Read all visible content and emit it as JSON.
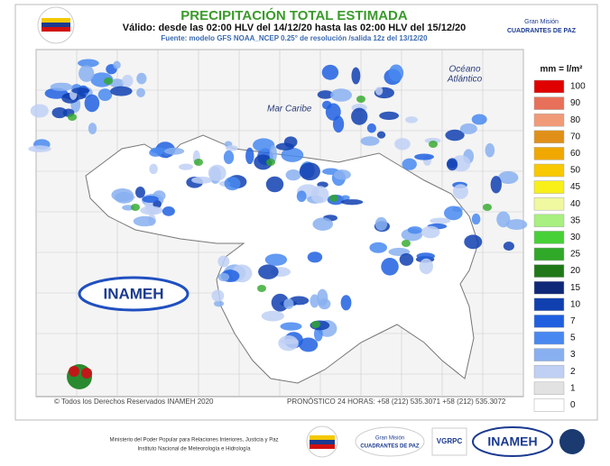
{
  "header": {
    "title": "PRECIPITACIÓN TOTAL ESTIMADA",
    "subtitle": "Válido: desde las 02:00 HLV del 14/12/20 hasta las 02:00 HLV del 15/12/20",
    "source": "Fuente: modelo GFS NOAA_NCEP 0.25° de resolución /salida 12z del 13/12/20"
  },
  "map": {
    "labels": [
      "Mar Caribe",
      "Océano",
      "Atlántico"
    ],
    "copyright": "© Todos los Derechos Reservados INAMEH 2020",
    "forecast": "PRONÓSTICO 24 HORAS: +58 (212) 535.3071 +58 (212) 535.3072",
    "logo": "INAMEH"
  },
  "legend": {
    "title": "mm = l/m²",
    "items": [
      {
        "label": "100",
        "color": "#e00000"
      },
      {
        "label": "90",
        "color": "#e8705a"
      },
      {
        "label": "80",
        "color": "#f09a78"
      },
      {
        "label": "70",
        "color": "#e09018"
      },
      {
        "label": "60",
        "color": "#f0a800"
      },
      {
        "label": "50",
        "color": "#f8c800"
      },
      {
        "label": "45",
        "color": "#f8f018"
      },
      {
        "label": "40",
        "color": "#f0f8a0"
      },
      {
        "label": "35",
        "color": "#a8f080"
      },
      {
        "label": "30",
        "color": "#48d038"
      },
      {
        "label": "25",
        "color": "#30a828"
      },
      {
        "label": "20",
        "color": "#207818"
      },
      {
        "label": "15",
        "color": "#102878"
      },
      {
        "label": "10",
        "color": "#1040b0"
      },
      {
        "label": "7",
        "color": "#2060e0"
      },
      {
        "label": "5",
        "color": "#4888f0"
      },
      {
        "label": "3",
        "color": "#88b0f0"
      },
      {
        "label": "2",
        "color": "#c0d0f4"
      },
      {
        "label": "1",
        "color": "#e2e2e2"
      },
      {
        "label": "0",
        "color": "#ffffff"
      }
    ]
  },
  "header_logo": {
    "line1": "Gran Misión",
    "line2": "CUADRANTES DE PAZ"
  },
  "footer": {
    "ministry": "Ministerio del Poder Popular para Relaciones Interiores, Justicia y Paz",
    "institute": "Instituto Nacional de Meteorología e Hidrología",
    "logos": [
      "Gran Misión",
      "CUADRANTES DE PAZ",
      "VGRPC",
      "INAMEH"
    ]
  }
}
